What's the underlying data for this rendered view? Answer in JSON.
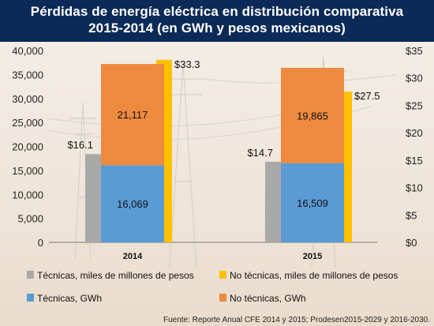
{
  "title_line1": "Pérdidas de energía eléctrica en distribución comparativa",
  "title_line2": "2015-2014 (en GWh y pesos mexicanos)",
  "source": "Fuente: Reporte Anual CFE 2014 y 2015; Prodesen2015-2029 y 2016-2030.",
  "colors": {
    "header_bg": "#0c2a57",
    "tecnicas_pesos": "#a9a9a9",
    "tecnicas_gwh": "#5b9bd5",
    "no_tecnicas_gwh": "#ed8a3d",
    "no_tecnicas_pesos": "#ffc000"
  },
  "chart_data": {
    "type": "bar",
    "categories": [
      "2014",
      "2015"
    ],
    "left_axis": {
      "ylim": [
        0,
        40000
      ],
      "ticks": [
        "0",
        "5,000",
        "10,000",
        "15,000",
        "20,000",
        "25,000",
        "30,000",
        "35,000",
        "40,000"
      ]
    },
    "right_axis": {
      "ylim": [
        0,
        35
      ],
      "ticks": [
        "$0",
        "$5",
        "$10",
        "$15",
        "$20",
        "$25",
        "$30",
        "$35"
      ]
    },
    "series": [
      {
        "name": "Técnicas, miles de millones de pesos",
        "axis": "right",
        "values": [
          16.1,
          14.7
        ],
        "labels": [
          "$16.1",
          "$14.7"
        ]
      },
      {
        "name": "Técnicas, GWh",
        "axis": "left",
        "stack": "gwh",
        "values": [
          16069,
          16509
        ],
        "labels": [
          "16,069",
          "16,509"
        ]
      },
      {
        "name": "No técnicas, GWh",
        "axis": "left",
        "stack": "gwh",
        "values": [
          21117,
          19865
        ],
        "labels": [
          "21,117",
          "19,865"
        ]
      },
      {
        "name": "No técnicas, miles de millones de pesos",
        "axis": "right",
        "values": [
          33.3,
          27.5
        ],
        "labels": [
          "$33.3",
          "$27.5"
        ]
      }
    ],
    "legend_position": "bottom"
  }
}
